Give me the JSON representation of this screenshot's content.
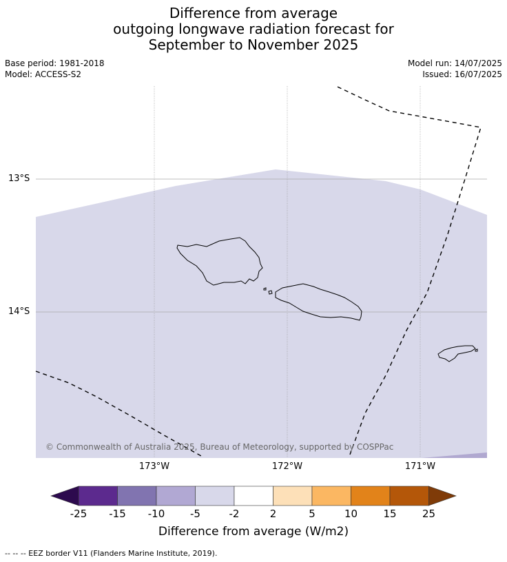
{
  "title": {
    "line1": "Difference from average",
    "line2": "outgoing longwave radiation forecast for",
    "line3": "September to November 2025"
  },
  "meta": {
    "base_period": "Base period: 1981-2018",
    "model": "Model: ACCESS-S2",
    "model_run": "Model run: 14/07/2025",
    "issued": "Issued: 16/07/2025"
  },
  "map": {
    "lat_labels": [
      "13°S",
      "14°S"
    ],
    "lon_labels": [
      "173°W",
      "172°W",
      "171°W"
    ],
    "copyright": "© Commonwealth of Australia 2025, Bureau of Meteorology, supported by COSPPac",
    "fill_color": "#d8d8ea",
    "lower_band_color": "#b0a8d0"
  },
  "colorbar": {
    "title": "Difference from average (W/m2)",
    "ticks": [
      "-25",
      "-15",
      "-10",
      "-5",
      "-2",
      "2",
      "5",
      "10",
      "15",
      "25"
    ],
    "colors": [
      "#5c2a8e",
      "#8174b0",
      "#b1a8d3",
      "#d8d8ea",
      "#ffffff",
      "#fde0b8",
      "#fbb762",
      "#e2831a",
      "#b45709"
    ],
    "low_extend_color": "#2d0a4e",
    "high_extend_color": "#7f3b08"
  },
  "footer": "--  --  -- EEZ border V11 (Flanders Marine Institute, 2019)."
}
